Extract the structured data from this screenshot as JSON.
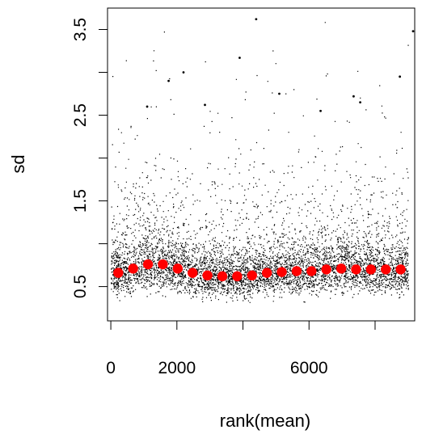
{
  "chart_data": {
    "type": "scatter",
    "title": "",
    "xlabel": "rank(mean)",
    "ylabel": "sd",
    "xlim": [
      -100,
      9200
    ],
    "ylim": [
      0.1,
      3.75
    ],
    "x_ticks": [
      0,
      2000,
      4000,
      6000,
      8000
    ],
    "x_tick_labels": [
      "0",
      "2000",
      "",
      "6000",
      ""
    ],
    "y_ticks": [
      0.5,
      1.0,
      1.5,
      2.0,
      2.5,
      3.0,
      3.5
    ],
    "y_tick_labels": [
      "0.5",
      "",
      "1.5",
      "",
      "2.5",
      "",
      "3.5"
    ],
    "grid": false,
    "legend": "none",
    "series": [
      {
        "marker": "point",
        "color": "#000000",
        "description_count": 9000,
        "typical_range": [
          0.3,
          1.1
        ],
        "center": 0.65
      },
      {
        "marker": "filled-circle",
        "color": "#ff0000",
        "x": [
          225,
          675,
          1125,
          1575,
          2025,
          2475,
          2925,
          3375,
          3825,
          4275,
          4725,
          5175,
          5625,
          6075,
          6525,
          6975,
          7425,
          7875,
          8325,
          8775
        ],
        "y": [
          0.66,
          0.71,
          0.76,
          0.76,
          0.71,
          0.66,
          0.63,
          0.62,
          0.62,
          0.63,
          0.66,
          0.67,
          0.68,
          0.68,
          0.7,
          0.71,
          0.7,
          0.7,
          0.7,
          0.7
        ]
      }
    ],
    "outliers": [
      {
        "x": 3900,
        "y": 3.17
      },
      {
        "x": 4400,
        "y": 3.62
      },
      {
        "x": 9150,
        "y": 3.48
      },
      {
        "x": 1100,
        "y": 2.6
      },
      {
        "x": 1750,
        "y": 2.9
      },
      {
        "x": 2200,
        "y": 3.0
      },
      {
        "x": 5100,
        "y": 2.75
      },
      {
        "x": 7350,
        "y": 2.72
      },
      {
        "x": 7550,
        "y": 2.65
      },
      {
        "x": 8750,
        "y": 2.95
      },
      {
        "x": 2850,
        "y": 2.62
      },
      {
        "x": 6350,
        "y": 2.55
      }
    ]
  }
}
